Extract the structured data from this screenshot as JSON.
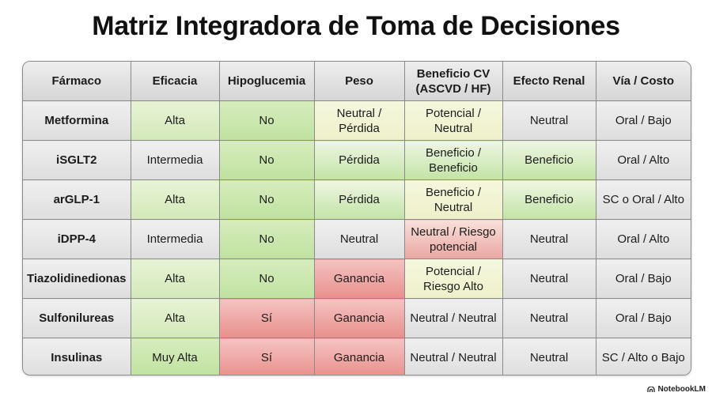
{
  "title": "Matriz Integradora de Toma de Decisiones",
  "columns": [
    "Fármaco",
    "Eficacia",
    "Hipoglucemia",
    "Peso",
    "Beneficio CV\n(ASCVD / HF)",
    "Efecto Renal",
    "Vía / Costo"
  ],
  "rows": [
    {
      "drug": "Metformina",
      "cells": [
        "Alta",
        "No",
        "Neutral /\nPérdida",
        "Potencial /\nNeutral",
        "Neutral",
        "Oral / Bajo"
      ]
    },
    {
      "drug": "iSGLT2",
      "cells": [
        "Intermedia",
        "No",
        "Pérdida",
        "Beneficio /\nBeneficio",
        "Beneficio",
        "Oral / Alto"
      ]
    },
    {
      "drug": "arGLP-1",
      "cells": [
        "Alta",
        "No",
        "Pérdida",
        "Beneficio /\nNeutral",
        "Beneficio",
        "SC o Oral / Alto"
      ]
    },
    {
      "drug": "iDPP-4",
      "cells": [
        "Intermedia",
        "No",
        "Neutral",
        "Neutral / Riesgo\npotencial",
        "Neutral",
        "Oral / Alto"
      ]
    },
    {
      "drug": "Tiazolidinedionas",
      "cells": [
        "Alta",
        "No",
        "Ganancia",
        "Potencial /\nRiesgo Alto",
        "Neutral",
        "Oral / Bajo"
      ]
    },
    {
      "drug": "Sulfonilureas",
      "cells": [
        "Alta",
        "Sí",
        "Ganancia",
        "Neutral / Neutral",
        "Neutral",
        "Oral / Bajo"
      ]
    },
    {
      "drug": "Insulinas",
      "cells": [
        "Muy Alta",
        "Sí",
        "Ganancia",
        "Neutral / Neutral",
        "Neutral",
        "SC / Alto o Bajo"
      ]
    }
  ],
  "colors": {
    "favorable": "#d3e9b9",
    "unfavorable": "#e98f8c",
    "intermediate": "#eef0c9",
    "neutral": "#dedede"
  },
  "brand": {
    "name": "NotebookLM",
    "icon": "notebooklm-logo-icon"
  }
}
